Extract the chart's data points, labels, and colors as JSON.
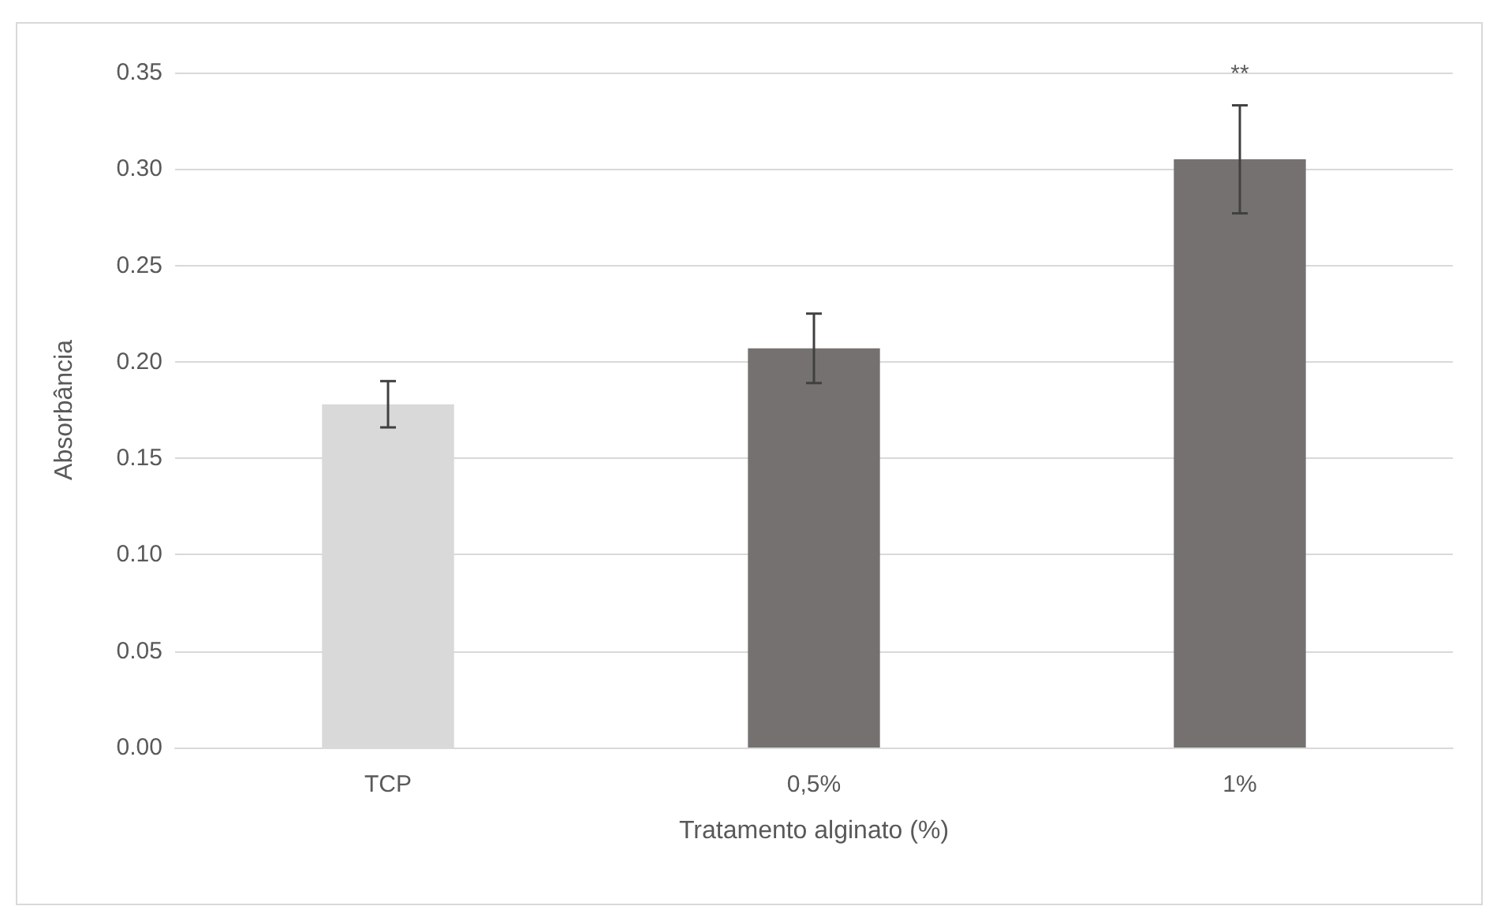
{
  "chart_data": {
    "type": "bar",
    "xlabel": "Tratamento alginato (%)",
    "ylabel": "Absorbância",
    "categories": [
      "TCP",
      "0,5%",
      "1%"
    ],
    "values": [
      0.178,
      0.207,
      0.305
    ],
    "colors": [
      "#d9d9d9",
      "#767171",
      "#767171"
    ],
    "errors": [
      0.012,
      0.018,
      0.028
    ],
    "ylim": [
      0,
      0.35
    ],
    "yticks": [
      {
        "value": 0,
        "label": "0.00"
      },
      0.05,
      {
        "value": 0.1,
        "label": "0.10"
      },
      0.15,
      {
        "value": 0.2,
        "label": "0.20"
      },
      0.25,
      {
        "value": 0.3,
        "label": "0.30"
      },
      0.35
    ],
    "grid": "y",
    "annotations": [
      {
        "text": "**",
        "x": "1%",
        "y": 0.333
      }
    ]
  }
}
